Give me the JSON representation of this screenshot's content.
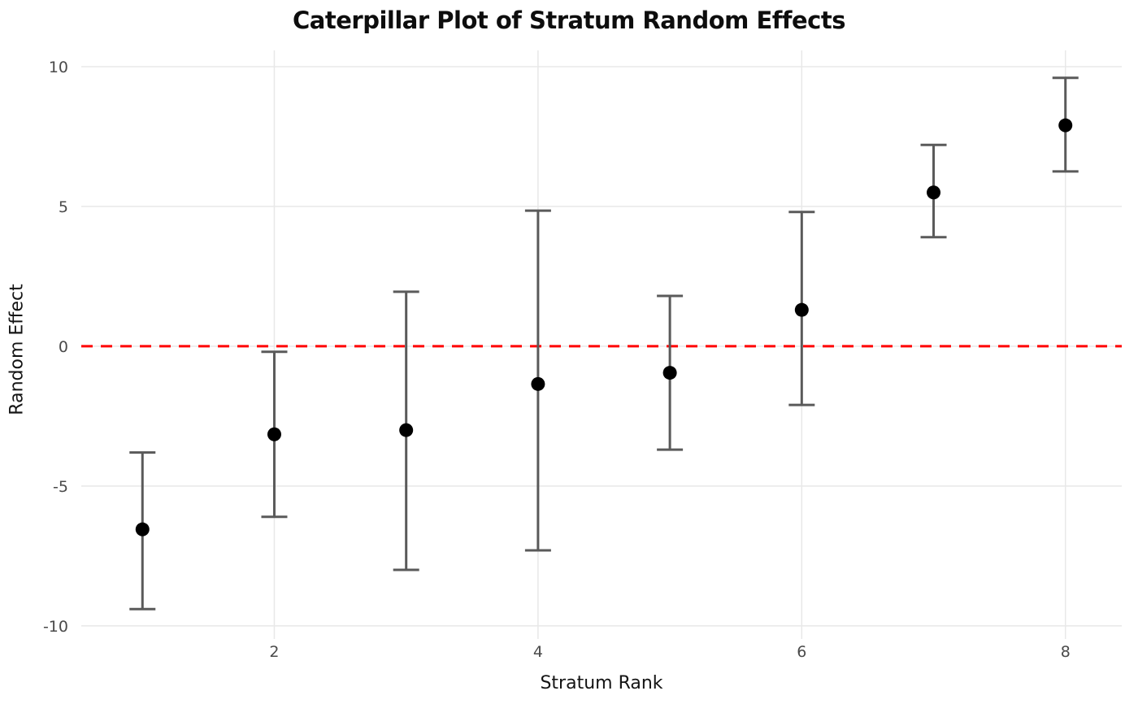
{
  "figure": {
    "title": "Caterpillar Plot of Stratum Random Effects",
    "xlabel": "Stratum Rank",
    "ylabel": "Random Effect"
  },
  "chart_data": {
    "type": "scatter",
    "subtype": "caterpillar-errorbar",
    "title": "Caterpillar Plot of Stratum Random Effects",
    "xlabel": "Stratum Rank",
    "ylabel": "Random Effect",
    "x": [
      1,
      2,
      3,
      4,
      5,
      6,
      7,
      8
    ],
    "estimates": [
      -6.55,
      -3.15,
      -3.0,
      -1.35,
      -0.95,
      1.3,
      5.5,
      7.9
    ],
    "ci_lower": [
      -9.4,
      -6.1,
      -8.0,
      -7.3,
      -3.7,
      -2.1,
      3.9,
      6.25
    ],
    "ci_upper": [
      -3.8,
      -0.2,
      1.95,
      4.85,
      1.8,
      4.8,
      7.2,
      9.6
    ],
    "xticks": [
      2,
      4,
      6,
      8
    ],
    "yticks": [
      10,
      5,
      0,
      -5,
      -10
    ],
    "xlim": [
      0.536,
      8.427
    ],
    "ylim": [
      -10.47,
      10.58
    ],
    "grid": true,
    "legend": "none",
    "reference_line": {
      "y": 0,
      "color": "#ff0000",
      "style": "dashed"
    },
    "colors": {
      "point": "#000000",
      "errorbar": "#5a5a5a",
      "gridline": "#e8e8e8",
      "tick_label": "#4a4a4a",
      "axis_label": "#141414",
      "background": "#ffffff"
    }
  }
}
